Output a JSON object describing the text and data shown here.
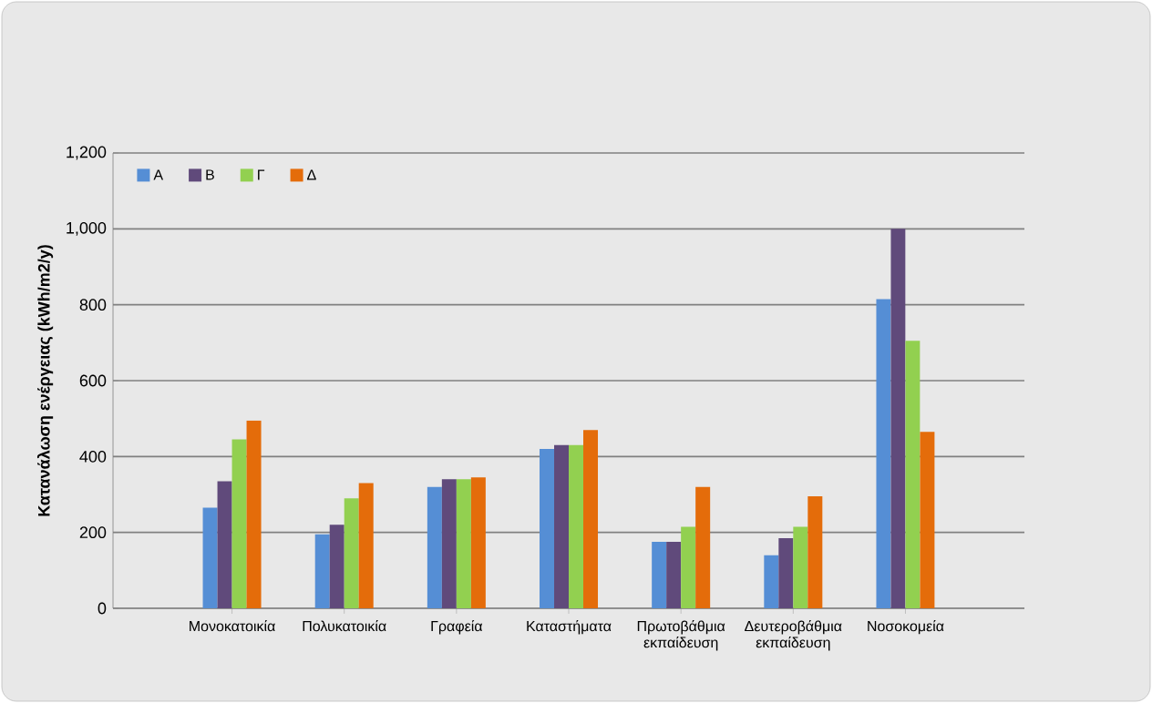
{
  "chart_data": {
    "type": "bar",
    "ylabel": "Κατανάλωση ενέργειας (kWh/m2/y)",
    "categories": [
      "Μονοκατοικία",
      "Πολυκατοικία",
      "Γραφεία",
      "Καταστήματα",
      "Πρωτοβάθμια εκπαίδευση",
      "Δευτεροβάθμια εκπαίδευση",
      "Νοσοκομεία"
    ],
    "series": [
      {
        "name": "Α",
        "color": "#558ed5",
        "values": [
          265,
          195,
          320,
          420,
          175,
          140,
          815
        ]
      },
      {
        "name": "Β",
        "color": "#604a7b",
        "values": [
          335,
          220,
          340,
          430,
          175,
          185,
          1000
        ]
      },
      {
        "name": "Γ",
        "color": "#92d050",
        "values": [
          445,
          290,
          340,
          430,
          215,
          215,
          705
        ]
      },
      {
        "name": "Δ",
        "color": "#e46c0a",
        "values": [
          495,
          330,
          345,
          470,
          320,
          295,
          465
        ]
      }
    ],
    "ylim": [
      0,
      1200
    ],
    "yticks": [
      0,
      200,
      400,
      600,
      800,
      {
        "value": 1000,
        "label": "1,000"
      },
      {
        "value": 1200,
        "label": "1,200"
      }
    ],
    "grid": "y",
    "legend": "top left"
  }
}
